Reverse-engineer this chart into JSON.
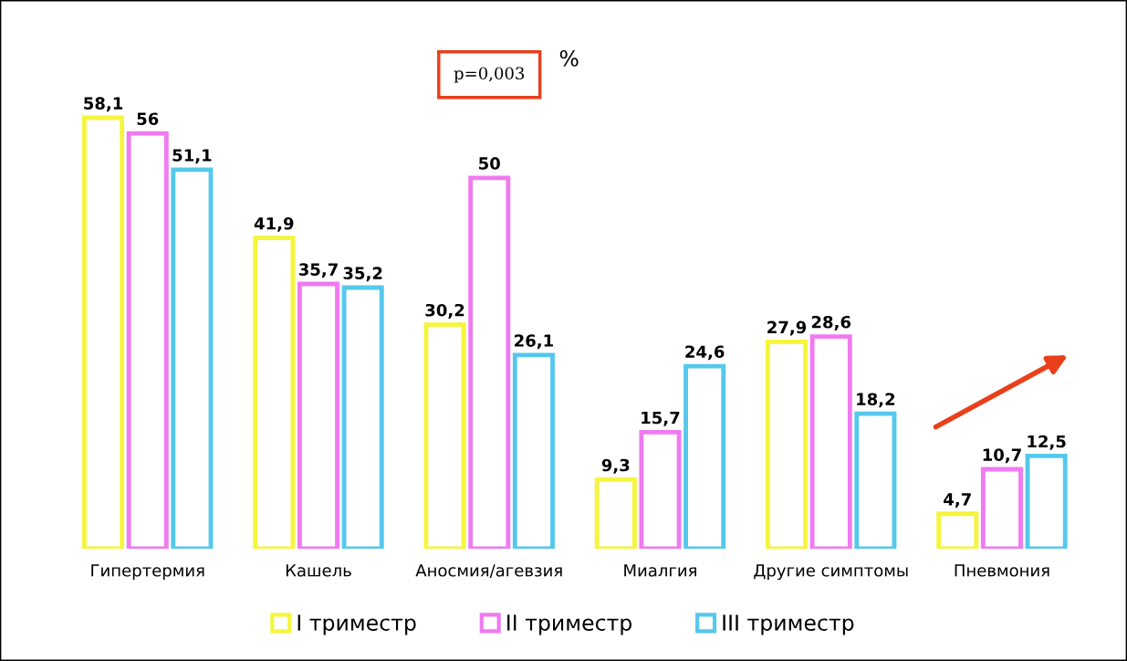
{
  "chart_data": {
    "type": "bar",
    "title": "%",
    "categories": [
      "Гипертермия",
      "Кашель",
      "Аносмия/агевзия",
      "Миалгия",
      "Другие симптомы",
      "Пневмония"
    ],
    "series": [
      {
        "name": "I триместр",
        "color": "#f5f53c",
        "values": [
          58.1,
          41.9,
          30.2,
          9.3,
          27.9,
          4.7
        ],
        "value_labels": [
          "58,1",
          "41,9",
          "30,2",
          "9,3",
          "27,9",
          "4,7"
        ]
      },
      {
        "name": "II триместр",
        "color": "#f07af0",
        "values": [
          56,
          35.7,
          50,
          15.7,
          28.6,
          10.7
        ],
        "value_labels": [
          "56",
          "35,7",
          "50",
          "15,7",
          "28,6",
          "10,7"
        ]
      },
      {
        "name": "III триместр",
        "color": "#55c8ec",
        "values": [
          51.1,
          35.2,
          26.1,
          24.6,
          18.2,
          12.5
        ],
        "value_labels": [
          "51,1",
          "35,2",
          "26,1",
          "24,6",
          "18,2",
          "12,5"
        ]
      }
    ],
    "annotations": [
      "p=0,003"
    ],
    "legend": "bottom",
    "grid": false
  }
}
